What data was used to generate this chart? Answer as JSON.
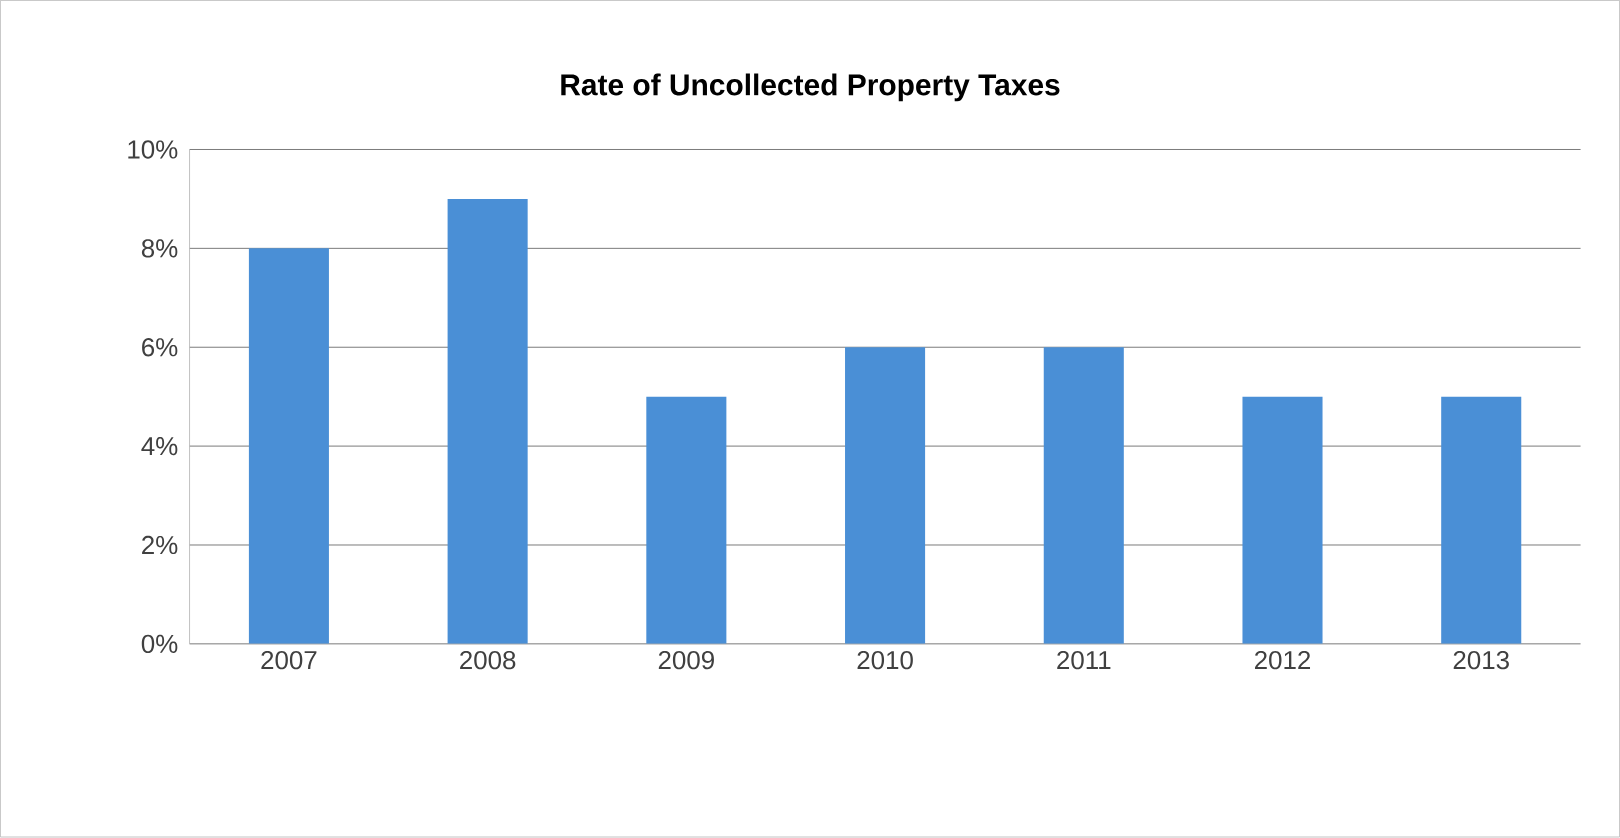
{
  "chart_data": {
    "type": "bar",
    "title": "Rate of Uncollected Property Taxes",
    "categories": [
      "2007",
      "2008",
      "2009",
      "2010",
      "2011",
      "2012",
      "2013"
    ],
    "values": [
      8,
      9,
      5,
      6,
      6,
      5,
      5
    ],
    "color": "#4a8fd6",
    "ylim": [
      0,
      10
    ],
    "yticks": [
      {
        "value": 0,
        "label": "0%"
      },
      {
        "value": 2,
        "label": "2%"
      },
      {
        "value": 4,
        "label": "4%"
      },
      {
        "value": 6,
        "label": "6%"
      },
      {
        "value": 8,
        "label": "8%"
      },
      {
        "value": 10,
        "label": "10%"
      }
    ],
    "grid": "y"
  }
}
